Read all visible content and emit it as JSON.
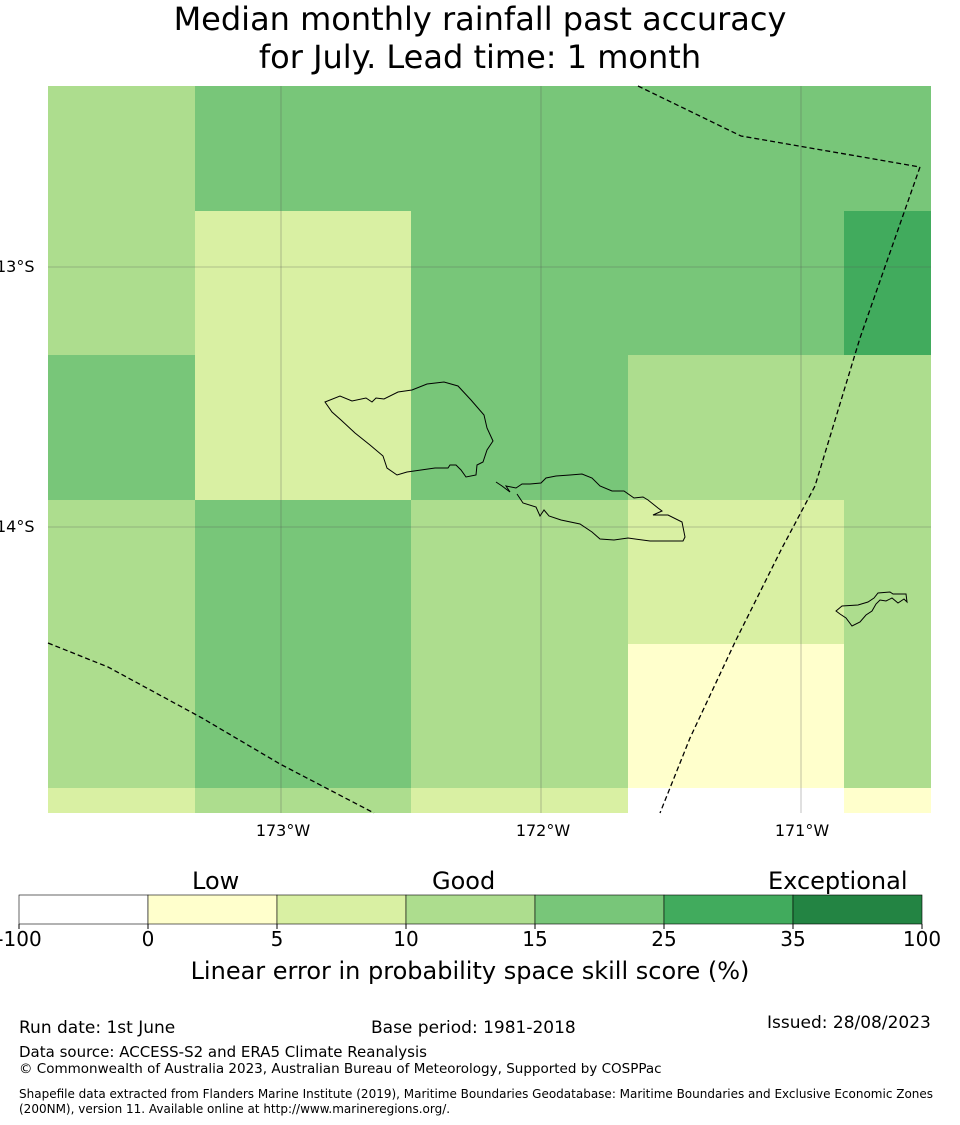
{
  "title": {
    "line1": "Median monthly rainfall past accuracy",
    "line2": "for July. Lead time: 1 month"
  },
  "map": {
    "lat_labels": [
      "13°S",
      "14°S"
    ],
    "lon_labels": [
      "173°W",
      "172°W",
      "171°W"
    ],
    "colors": {
      "c0": "#ffffff",
      "c1": "#ffffcc",
      "c2": "#d9f0a3",
      "c3": "#addd8e",
      "c4": "#78c679",
      "c5": "#41ab5d",
      "c6": "#238443"
    },
    "grid_cells": [
      {
        "row": 0,
        "col": 0,
        "cls": "c3"
      },
      {
        "row": 0,
        "col": 1,
        "cls": "c4"
      },
      {
        "row": 0,
        "col": 2,
        "cls": "c4"
      },
      {
        "row": 0,
        "col": 3,
        "cls": "c4"
      },
      {
        "row": 0,
        "col": 4,
        "cls": "c4"
      },
      {
        "row": 1,
        "col": 0,
        "cls": "c3"
      },
      {
        "row": 1,
        "col": 1,
        "cls": "c2"
      },
      {
        "row": 1,
        "col": 2,
        "cls": "c4"
      },
      {
        "row": 1,
        "col": 3,
        "cls": "c4"
      },
      {
        "row": 1,
        "col": 4,
        "cls": "c5"
      },
      {
        "row": 2,
        "col": 0,
        "cls": "c4"
      },
      {
        "row": 2,
        "col": 1,
        "cls": "c2"
      },
      {
        "row": 2,
        "col": 2,
        "cls": "c4"
      },
      {
        "row": 2,
        "col": 3,
        "cls": "c3"
      },
      {
        "row": 2,
        "col": 4,
        "cls": "c3"
      },
      {
        "row": 3,
        "col": 0,
        "cls": "c3"
      },
      {
        "row": 3,
        "col": 1,
        "cls": "c4"
      },
      {
        "row": 3,
        "col": 2,
        "cls": "c3"
      },
      {
        "row": 3,
        "col": 3,
        "cls": "c2"
      },
      {
        "row": 3,
        "col": 4,
        "cls": "c3"
      },
      {
        "row": 4,
        "col": 0,
        "cls": "c3"
      },
      {
        "row": 4,
        "col": 1,
        "cls": "c4"
      },
      {
        "row": 4,
        "col": 2,
        "cls": "c3"
      },
      {
        "row": 4,
        "col": 3,
        "cls": "c1"
      },
      {
        "row": 4,
        "col": 4,
        "cls": "c3"
      },
      {
        "row": 5,
        "col": 0,
        "cls": "c2"
      },
      {
        "row": 5,
        "col": 1,
        "cls": "c3"
      },
      {
        "row": 5,
        "col": 2,
        "cls": "c2"
      },
      {
        "row": 5,
        "col": 3,
        "cls": "c0"
      },
      {
        "row": 5,
        "col": 4,
        "cls": "c1"
      }
    ]
  },
  "colorbar": {
    "categories": [
      "Low",
      "Good",
      "Exceptional"
    ],
    "ticks": [
      "-100",
      "0",
      "5",
      "10",
      "15",
      "25",
      "35",
      "100"
    ],
    "label": "Linear error in probability space skill score (%)"
  },
  "footer": {
    "run_date": "Run date: 1st June",
    "base_period": "Base period: 1981-2018",
    "issued": "Issued: 28/08/2023",
    "data_source": "Data source: ACCESS-S2 and ERA5 Climate Reanalysis",
    "copyright": "© Commonwealth of Australia 2023, Australian Bureau of Meteorology, Supported by COSPPac",
    "shapefile_line1": "Shapefile data extracted from Flanders Marine Institute (2019), Maritime Boundaries Geodatabase: Maritime Boundaries and Exclusive Economic Zones",
    "shapefile_line2": "(200NM), version 11. Available online at http://www.marineregions.org/."
  }
}
